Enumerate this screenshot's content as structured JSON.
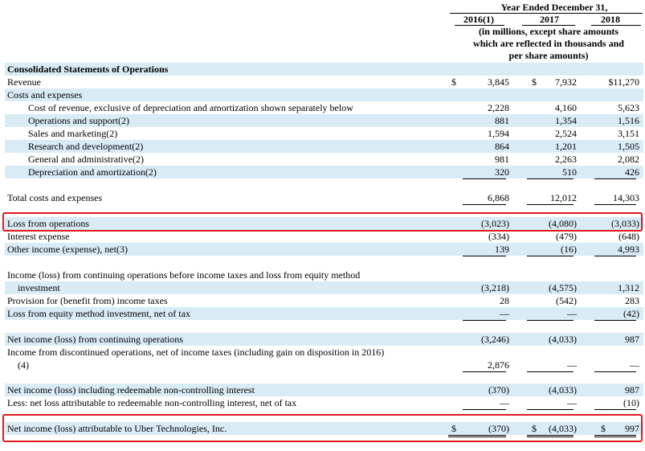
{
  "header": {
    "period": "Year Ended December 31,",
    "years": [
      "2016(1)",
      "2017",
      "2018"
    ],
    "units_line1": "(in millions, except share amounts",
    "units_line2": "which are reflected in thousands and",
    "units_line3": "per share amounts)"
  },
  "section_title": "Consolidated Statements of Operations",
  "currency": "$",
  "rows": {
    "revenue": {
      "label": "Revenue",
      "v": [
        "3,845",
        "7,932",
        "$11,270"
      ]
    },
    "costs_header": {
      "label": "Costs and expenses"
    },
    "cost_of_revenue": {
      "label": "Cost of revenue, exclusive of depreciation and amortization shown separately below",
      "v": [
        "2,228",
        "4,160",
        "5,623"
      ]
    },
    "operations_support": {
      "label": "Operations and support(2)",
      "v": [
        "881",
        "1,354",
        "1,516"
      ]
    },
    "sales_marketing": {
      "label": "Sales and marketing(2)",
      "v": [
        "1,594",
        "2,524",
        "3,151"
      ]
    },
    "research_development": {
      "label": "Research and development(2)",
      "v": [
        "864",
        "1,201",
        "1,505"
      ]
    },
    "general_admin": {
      "label": "General and administrative(2)",
      "v": [
        "981",
        "2,263",
        "2,082"
      ]
    },
    "depreciation": {
      "label": "Depreciation and amortization(2)",
      "v": [
        "320",
        "510",
        "426"
      ]
    },
    "total_costs": {
      "label": "Total costs and expenses",
      "v": [
        "6,868",
        "12,012",
        "14,303"
      ]
    },
    "loss_operations": {
      "label": "Loss from operations",
      "v": [
        "(3,023)",
        "(4,080)",
        "(3,033)"
      ]
    },
    "interest_expense": {
      "label": "Interest expense",
      "v": [
        "(334)",
        "(479)",
        "(648)"
      ]
    },
    "other_income": {
      "label": "Other income (expense), net(3)",
      "v": [
        "139",
        "(16)",
        "4,993"
      ]
    },
    "income_before_tax_l1": {
      "label": "Income (loss) from continuing operations before income taxes and loss from equity method"
    },
    "income_before_tax_l2": {
      "label": "investment",
      "v": [
        "(3,218)",
        "(4,575)",
        "1,312"
      ]
    },
    "provision_tax": {
      "label": "Provision for (benefit from) income taxes",
      "v": [
        "28",
        "(542)",
        "283"
      ]
    },
    "equity_method": {
      "label": "Loss from equity method investment, net of tax",
      "v": [
        "—",
        "—",
        "(42)"
      ]
    },
    "net_income_cont": {
      "label": "Net income (loss) from continuing operations",
      "v": [
        "(3,246)",
        "(4,033)",
        "987"
      ]
    },
    "discontinued_l1": {
      "label": "Income from discontinued operations, net of income taxes (including gain on disposition in 2016)"
    },
    "discontinued_l2": {
      "label": "(4)",
      "v": [
        "2,876",
        "—",
        "—"
      ]
    },
    "net_income_incl": {
      "label": "Net income (loss) including redeemable non-controlling interest",
      "v": [
        "(370)",
        "(4,033)",
        "987"
      ]
    },
    "less_nci": {
      "label": "Less: net loss attributable to redeemable non-controlling interest, net of tax",
      "v": [
        "—",
        "—",
        "(10)"
      ]
    },
    "net_income_uber": {
      "label": "Net income (loss) attributable to Uber Technologies, Inc.",
      "v": [
        "(370)",
        "(4,033)",
        "997"
      ]
    }
  },
  "colors": {
    "highlight": "#e0191d",
    "row_shade": "#d9ecf6"
  }
}
